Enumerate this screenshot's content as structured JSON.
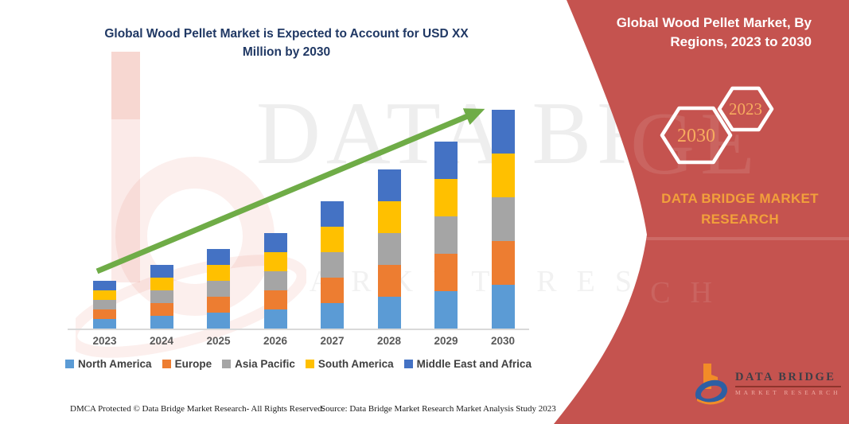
{
  "chart_title_line1": "Global Wood Pellet Market is Expected to Account for USD XX",
  "chart_title_line2": "Million by 2030",
  "chart_data": {
    "type": "bar",
    "stacked": true,
    "title": "Global Wood Pellet Market is Expected to Account for USD XX Million by 2030",
    "categories": [
      "2023",
      "2024",
      "2025",
      "2026",
      "2027",
      "2028",
      "2029",
      "2030"
    ],
    "series": [
      {
        "name": "North America",
        "color": "#5B9BD5",
        "values": [
          12,
          16,
          20,
          24,
          32,
          40,
          47,
          55
        ]
      },
      {
        "name": "Europe",
        "color": "#ED7D31",
        "values": [
          12,
          16,
          20,
          24,
          32,
          40,
          47,
          55
        ]
      },
      {
        "name": "Asia Pacific",
        "color": "#A5A5A5",
        "values": [
          12,
          16,
          20,
          24,
          32,
          40,
          47,
          55
        ]
      },
      {
        "name": "South America",
        "color": "#FFC000",
        "values": [
          12,
          16,
          20,
          24,
          32,
          40,
          47,
          55
        ]
      },
      {
        "name": "Middle East and Africa",
        "color": "#4472C4",
        "values": [
          12,
          16,
          20,
          24,
          32,
          40,
          47,
          55
        ]
      }
    ],
    "xlabel": "",
    "ylabel": "",
    "ylim": [
      0,
      300
    ],
    "grid": false,
    "y_axis_visible": false,
    "values_labeled": false,
    "value_units": "USD XX Million (bar values not labeled on chart; heights estimated in relative units, split evenly across regions)",
    "legend_position": "bottom",
    "trend_arrow": {
      "from_category": "2023",
      "to_category": "2030",
      "color": "#6FAC47",
      "direction": "up-right"
    }
  },
  "panel": {
    "title_line1": "Global Wood Pellet Market, By",
    "title_line2": "Regions, 2023 to 2030",
    "hexagon_back_label": "2030",
    "hexagon_front_label": "2023",
    "brand_line1": "DATA BRIDGE MARKET",
    "brand_line2": "RESEARCH",
    "background_color": "#C5534F",
    "title_color": "#FFFFFF",
    "accent_text_color": "#F2A03B"
  },
  "logo": {
    "name": "DATA BRIDGE",
    "subtitle": "MARKET RESEARCH"
  },
  "watermark": {
    "line1": "DATA BRIDGE",
    "line2": "MARKET RESEARCH"
  },
  "footer": {
    "dmca": "DMCA Protected © Data Bridge Market Research-  All Rights Reserved.",
    "source": "Source: Data Bridge Market Research  Market Analysis Study 2023"
  },
  "colors": {
    "chart_title": "#203864",
    "axis_line": "#D9D9D9",
    "axis_labels": "#595959",
    "legend_text": "#3F3F3F",
    "trend_arrow": "#6FAC47",
    "panel_red": "#C5534F"
  }
}
